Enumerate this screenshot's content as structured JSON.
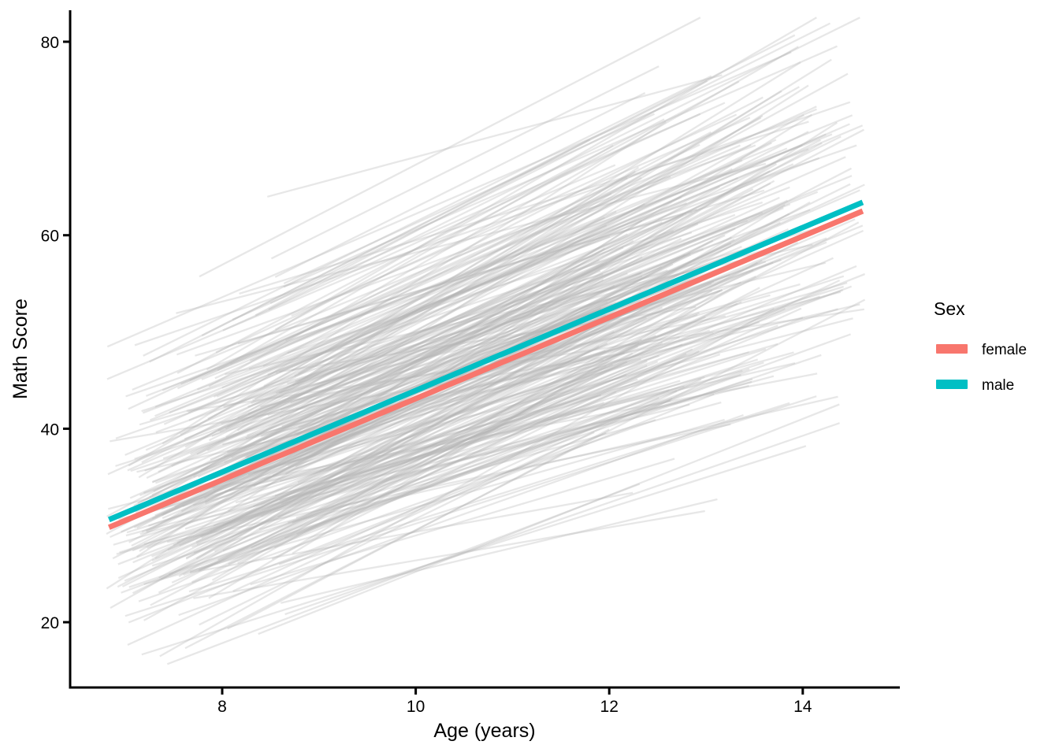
{
  "chart_data": {
    "type": "line",
    "title": "",
    "xlabel": "Age (years)",
    "ylabel": "Math Score",
    "x_ticks": [
      8,
      10,
      12,
      14
    ],
    "y_ticks": [
      20,
      40,
      60,
      80
    ],
    "xlim": [
      6.43,
      15.0
    ],
    "ylim": [
      13.2,
      83.5
    ],
    "grid": "off",
    "legend": {
      "title": "Sex",
      "position": "right",
      "entries": [
        {
          "label": "female",
          "color": "#F8766D"
        },
        {
          "label": "male",
          "color": "#00BFC4"
        }
      ]
    },
    "series": [
      {
        "name": "female",
        "color": "#F8766D",
        "x": [
          6.83,
          14.62
        ],
        "y": [
          29.8,
          62.5
        ]
      },
      {
        "name": "male",
        "color": "#00BFC4",
        "x": [
          6.83,
          14.62
        ],
        "y": [
          30.6,
          63.4
        ]
      }
    ],
    "spaghetti": {
      "description": "individual-child math trajectories (background lines)",
      "n": 320,
      "color": "#b4b4b4",
      "opacity": 0.32,
      "stroke_width": 2.3,
      "seed": 42,
      "age_start_range": [
        6.8,
        8.8
      ],
      "age_end_range": [
        11.8,
        14.65
      ],
      "score_mean_at_age_10_7": 46.9,
      "score_sd": 8.8,
      "slope_mean": 4.2,
      "slope_sd": 1.05,
      "intercept_slope_corr": 0.3
    },
    "axis_color": "#000000",
    "axis_stroke_width": 3,
    "trend_stroke_width": 7
  }
}
